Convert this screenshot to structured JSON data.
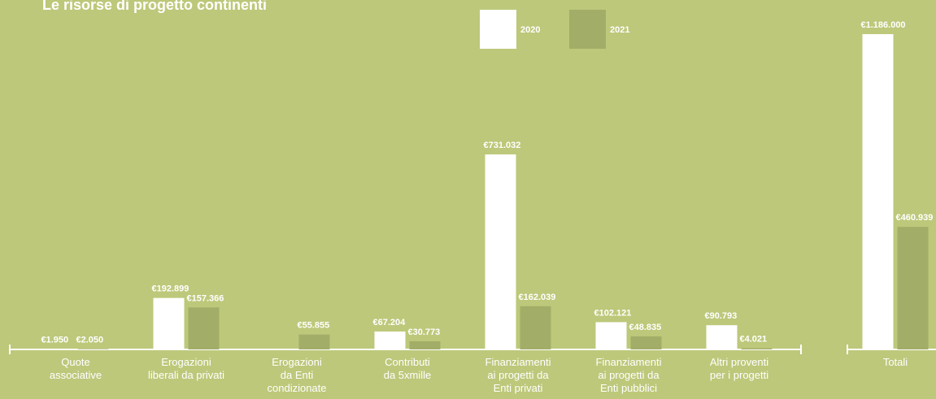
{
  "chart_data": [
    {
      "type": "bar",
      "title": "Le risorse di progetto continenti",
      "categories": [
        "Quote\nassociative",
        "Erogazioni\nliberali da privati",
        "Erogazioni\nda Enti\ncondizionate",
        "Contributi\nda 5xmille",
        "Finanziamenti\nai progetti da\nEnti privati",
        "Finanziamenti\nai progetti da\nEnti pubblici",
        "Altri proventi\nper i progetti"
      ],
      "series": [
        {
          "name": "2020",
          "color": "#ffffff",
          "values": [
            1950,
            192899,
            null,
            67204,
            731032,
            102121,
            90793
          ],
          "value_labels": [
            "€1.950",
            "€192.899",
            null,
            "€67.204",
            "€731.032",
            "€102.121",
            "€90.793"
          ]
        },
        {
          "name": "2021",
          "color": "#a2ae68",
          "values": [
            2050,
            157366,
            55855,
            30773,
            162039,
            48835,
            4021
          ],
          "value_labels": [
            "€2.050",
            "€157.366",
            "€55.855",
            "€30.773",
            "€162.039",
            "€48.835",
            "€4.021"
          ]
        }
      ]
    },
    {
      "type": "bar",
      "categories": [
        "Totali"
      ],
      "series": [
        {
          "name": "2020",
          "color": "#ffffff",
          "values": [
            1186000
          ],
          "value_labels": [
            "€1.186.000"
          ]
        },
        {
          "name": "2021",
          "color": "#a2ae68",
          "values": [
            460939
          ],
          "value_labels": [
            "€460.939"
          ]
        }
      ]
    }
  ]
}
